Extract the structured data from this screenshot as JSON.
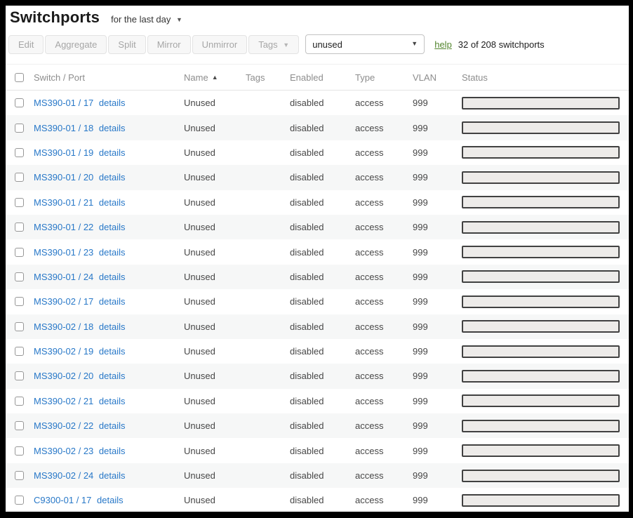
{
  "page": {
    "title": "Switchports",
    "time_filter": "for the last day",
    "help_label": "help",
    "summary": "32 of 208 switchports"
  },
  "toolbar": {
    "buttons": [
      "Edit",
      "Aggregate",
      "Split",
      "Mirror",
      "Unmirror"
    ],
    "tags_button_label": "Tags",
    "filter_value": "unused"
  },
  "table": {
    "columns": [
      "Switch / Port",
      "Name",
      "Tags",
      "Enabled",
      "Type",
      "VLAN",
      "Status"
    ],
    "sort_column": "Name",
    "sort_direction": "ascending",
    "details_label": "details",
    "rows": [
      {
        "switch_port": "MS390-01 / 17",
        "name": "Unused",
        "tags": "",
        "enabled": "disabled",
        "type": "access",
        "vlan": "999"
      },
      {
        "switch_port": "MS390-01 / 18",
        "name": "Unused",
        "tags": "",
        "enabled": "disabled",
        "type": "access",
        "vlan": "999"
      },
      {
        "switch_port": "MS390-01 / 19",
        "name": "Unused",
        "tags": "",
        "enabled": "disabled",
        "type": "access",
        "vlan": "999"
      },
      {
        "switch_port": "MS390-01 / 20",
        "name": "Unused",
        "tags": "",
        "enabled": "disabled",
        "type": "access",
        "vlan": "999"
      },
      {
        "switch_port": "MS390-01 / 21",
        "name": "Unused",
        "tags": "",
        "enabled": "disabled",
        "type": "access",
        "vlan": "999"
      },
      {
        "switch_port": "MS390-01 / 22",
        "name": "Unused",
        "tags": "",
        "enabled": "disabled",
        "type": "access",
        "vlan": "999"
      },
      {
        "switch_port": "MS390-01 / 23",
        "name": "Unused",
        "tags": "",
        "enabled": "disabled",
        "type": "access",
        "vlan": "999"
      },
      {
        "switch_port": "MS390-01 / 24",
        "name": "Unused",
        "tags": "",
        "enabled": "disabled",
        "type": "access",
        "vlan": "999"
      },
      {
        "switch_port": "MS390-02 / 17",
        "name": "Unused",
        "tags": "",
        "enabled": "disabled",
        "type": "access",
        "vlan": "999"
      },
      {
        "switch_port": "MS390-02 / 18",
        "name": "Unused",
        "tags": "",
        "enabled": "disabled",
        "type": "access",
        "vlan": "999"
      },
      {
        "switch_port": "MS390-02 / 19",
        "name": "Unused",
        "tags": "",
        "enabled": "disabled",
        "type": "access",
        "vlan": "999"
      },
      {
        "switch_port": "MS390-02 / 20",
        "name": "Unused",
        "tags": "",
        "enabled": "disabled",
        "type": "access",
        "vlan": "999"
      },
      {
        "switch_port": "MS390-02 / 21",
        "name": "Unused",
        "tags": "",
        "enabled": "disabled",
        "type": "access",
        "vlan": "999"
      },
      {
        "switch_port": "MS390-02 / 22",
        "name": "Unused",
        "tags": "",
        "enabled": "disabled",
        "type": "access",
        "vlan": "999"
      },
      {
        "switch_port": "MS390-02 / 23",
        "name": "Unused",
        "tags": "",
        "enabled": "disabled",
        "type": "access",
        "vlan": "999"
      },
      {
        "switch_port": "MS390-02 / 24",
        "name": "Unused",
        "tags": "",
        "enabled": "disabled",
        "type": "access",
        "vlan": "999"
      },
      {
        "switch_port": "C9300-01 / 17",
        "name": "Unused",
        "tags": "",
        "enabled": "disabled",
        "type": "access",
        "vlan": "999"
      }
    ]
  },
  "colors": {
    "link_blue": "#2878c8",
    "help_green": "#53862e",
    "row_alt": "#f6f7f7",
    "status_bar_fill": "#edebe9",
    "status_bar_border": "#414141"
  }
}
